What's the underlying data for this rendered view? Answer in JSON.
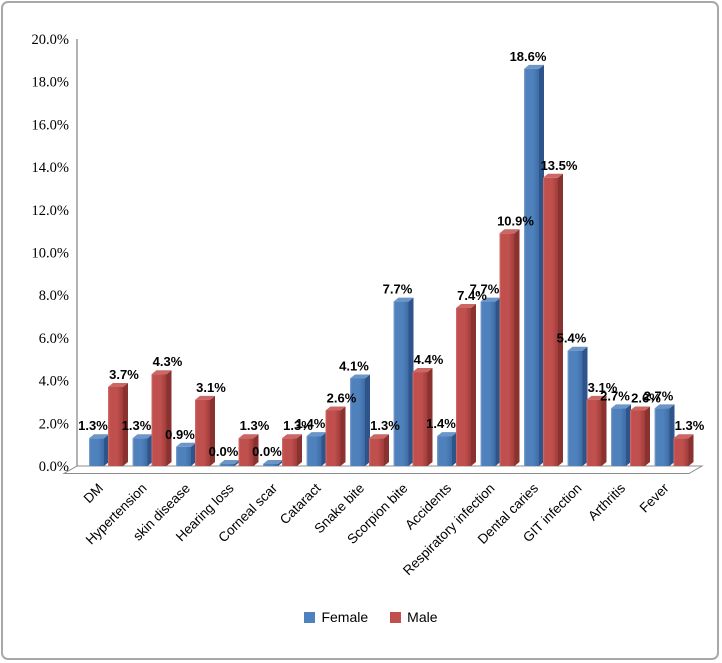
{
  "window": {
    "background": "#FFFFFF",
    "border_color": "#A8A8A8"
  },
  "chart_data": {
    "type": "bar",
    "title": "",
    "xlabel": "",
    "ylabel": "",
    "categories": [
      "DM",
      "Hypertension",
      "skin disease",
      "Hearing loss",
      "Corneal scar",
      "Cataract",
      "Snake bite",
      "Scorpion bite",
      "Accidents",
      "Respiratory infection",
      "Dental caries",
      "GIT infection",
      "Arthritis",
      "Fever"
    ],
    "series": [
      {
        "name": "Female",
        "color": "#4F81BD",
        "values": [
          1.3,
          1.3,
          0.9,
          0.0,
          0.0,
          1.4,
          4.1,
          7.7,
          1.4,
          7.7,
          18.6,
          5.4,
          2.7,
          2.7
        ]
      },
      {
        "name": "Male",
        "color": "#C0504D",
        "values": [
          3.7,
          4.3,
          3.1,
          1.3,
          1.3,
          2.6,
          1.3,
          4.4,
          7.4,
          10.9,
          13.5,
          3.1,
          2.6,
          1.3
        ]
      }
    ],
    "data_labels": [
      [
        "1.3%",
        "1.3%",
        "0.9%",
        "0.0%",
        "0.0%",
        "1.4%",
        "4.1%",
        "7.7%",
        "1.4%",
        "7.7%",
        "18.6%",
        "5.4%",
        "2.7%",
        "2.7%"
      ],
      [
        "3.7%",
        "4.3%",
        "3.1%",
        "1.3%",
        "1.3%",
        "2.6%",
        "1.3%",
        "4.4%",
        "7.4%",
        "10.9%",
        "13.5%",
        "3.1%",
        "2.6%",
        "1.3%"
      ]
    ],
    "y_axis": {
      "min": 0,
      "max": 20,
      "step": 2,
      "tick_labels": [
        "0.0%",
        "2.0%",
        "4.0%",
        "6.0%",
        "8.0%",
        "10.0%",
        "12.0%",
        "14.0%",
        "16.0%",
        "18.0%",
        "20.0%"
      ]
    },
    "legend": {
      "position": "bottom",
      "items": [
        "Female",
        "Male"
      ]
    },
    "grid": false,
    "effect": "3d-clustered-column",
    "style": {
      "female_front": "#4F81BD",
      "female_side": "#2E548C",
      "female_top": "#6C95C8",
      "male_front": "#C0504D",
      "male_side": "#8A3230",
      "male_top": "#CB6764",
      "axis_color": "#808080",
      "floor_stroke": "#8C8C8C",
      "label_color": "#000000"
    }
  }
}
